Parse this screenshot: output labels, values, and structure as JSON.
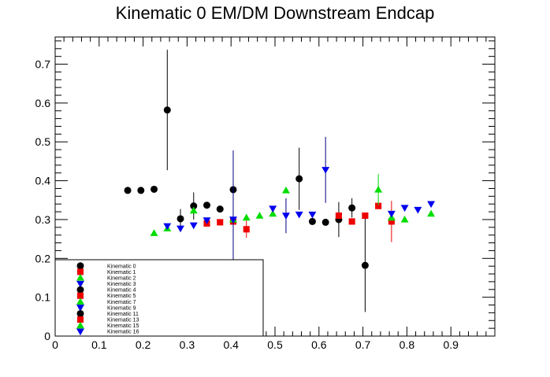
{
  "chart_data": {
    "type": "scatter",
    "title": "Kinematic 0 EM/DM Downstream Endcap",
    "xlabel": "",
    "ylabel": "",
    "xlim": [
      0,
      1.0
    ],
    "ylim": [
      0,
      0.77
    ],
    "x_ticks": [
      0,
      0.1,
      0.2,
      0.3,
      0.4,
      0.5,
      0.6,
      0.7,
      0.8,
      0.9
    ],
    "x_tick_labels": [
      "0",
      "0.1",
      "0.2",
      "0.3",
      "0.4",
      "0.5",
      "0.6",
      "0.7",
      "0.8",
      "0.9"
    ],
    "y_ticks": [
      0,
      0.1,
      0.2,
      0.3,
      0.4,
      0.5,
      0.6,
      0.7
    ],
    "y_tick_labels": [
      "0",
      "0.1",
      "0.2",
      "0.3",
      "0.4",
      "0.5",
      "0.6",
      "0.7"
    ],
    "grid": false,
    "legend_placement": "bottom-left",
    "series": [
      {
        "name": "Kinematic 0",
        "marker": "circle",
        "color": "#000000",
        "points": [
          {
            "x": 0.165,
            "y": 0.375,
            "err": 0.0
          },
          {
            "x": 0.195,
            "y": 0.375,
            "err": 0.0
          },
          {
            "x": 0.225,
            "y": 0.378,
            "err": 0.0
          },
          {
            "x": 0.255,
            "y": 0.582,
            "err": 0.155
          },
          {
            "x": 0.285,
            "y": 0.302,
            "err": 0.025
          },
          {
            "x": 0.315,
            "y": 0.335,
            "err": 0.035
          },
          {
            "x": 0.345,
            "y": 0.337,
            "err": 0.0
          },
          {
            "x": 0.375,
            "y": 0.327,
            "err": 0.0
          },
          {
            "x": 0.405,
            "y": 0.377,
            "err": 0.0
          },
          {
            "x": 0.555,
            "y": 0.405,
            "err": 0.08
          },
          {
            "x": 0.585,
            "y": 0.295,
            "err": 0.0
          },
          {
            "x": 0.615,
            "y": 0.293,
            "err": 0.0
          },
          {
            "x": 0.645,
            "y": 0.3,
            "err": 0.045
          },
          {
            "x": 0.675,
            "y": 0.33,
            "err": 0.025
          },
          {
            "x": 0.705,
            "y": 0.182,
            "err": 0.12
          }
        ]
      },
      {
        "name": "Kinematic 1",
        "marker": "square",
        "color": "#ee0000",
        "points": [
          {
            "x": 0.345,
            "y": 0.29,
            "err": 0.0
          },
          {
            "x": 0.375,
            "y": 0.293,
            "err": 0.0
          },
          {
            "x": 0.405,
            "y": 0.295,
            "err": 0.0
          },
          {
            "x": 0.435,
            "y": 0.275,
            "err": 0.022
          },
          {
            "x": 0.645,
            "y": 0.31,
            "err": 0.0
          },
          {
            "x": 0.675,
            "y": 0.295,
            "err": 0.0
          },
          {
            "x": 0.705,
            "y": 0.31,
            "err": 0.0
          },
          {
            "x": 0.735,
            "y": 0.335,
            "err": 0.0
          },
          {
            "x": 0.765,
            "y": 0.295,
            "err": 0.053
          }
        ]
      },
      {
        "name": "Kinematic 2",
        "marker": "triangle-up",
        "color": "#00dd00",
        "points": [
          {
            "x": 0.225,
            "y": 0.265,
            "err": 0.0
          },
          {
            "x": 0.255,
            "y": 0.277,
            "err": 0.0
          },
          {
            "x": 0.315,
            "y": 0.323,
            "err": 0.0
          },
          {
            "x": 0.405,
            "y": 0.3,
            "err": 0.0
          },
          {
            "x": 0.435,
            "y": 0.305,
            "err": 0.0
          },
          {
            "x": 0.465,
            "y": 0.31,
            "err": 0.0
          },
          {
            "x": 0.495,
            "y": 0.315,
            "err": 0.0
          },
          {
            "x": 0.525,
            "y": 0.375,
            "err": 0.0
          },
          {
            "x": 0.735,
            "y": 0.377,
            "err": 0.04
          },
          {
            "x": 0.765,
            "y": 0.305,
            "err": 0.0
          },
          {
            "x": 0.795,
            "y": 0.3,
            "err": 0.0
          },
          {
            "x": 0.855,
            "y": 0.315,
            "err": 0.0
          }
        ]
      },
      {
        "name": "Kinematic 3",
        "marker": "triangle-down",
        "color": "#0000ee",
        "points": [
          {
            "x": 0.255,
            "y": 0.283,
            "err": 0.0
          },
          {
            "x": 0.285,
            "y": 0.277,
            "err": 0.0
          },
          {
            "x": 0.315,
            "y": 0.285,
            "err": 0.0
          },
          {
            "x": 0.345,
            "y": 0.298,
            "err": 0.0
          },
          {
            "x": 0.405,
            "y": 0.3,
            "err": 0.178
          },
          {
            "x": 0.495,
            "y": 0.328,
            "err": 0.0
          },
          {
            "x": 0.525,
            "y": 0.31,
            "err": 0.045
          },
          {
            "x": 0.555,
            "y": 0.313,
            "err": 0.0
          },
          {
            "x": 0.585,
            "y": 0.313,
            "err": 0.0
          },
          {
            "x": 0.615,
            "y": 0.428,
            "err": 0.085
          },
          {
            "x": 0.765,
            "y": 0.315,
            "err": 0.0
          },
          {
            "x": 0.795,
            "y": 0.33,
            "err": 0.0
          },
          {
            "x": 0.825,
            "y": 0.325,
            "err": 0.0
          },
          {
            "x": 0.855,
            "y": 0.34,
            "err": 0.0
          }
        ]
      }
    ],
    "legend_entries": [
      {
        "label": "Kinematic 0",
        "marker": "circle",
        "color": "#000000"
      },
      {
        "label": "Kinematic 1",
        "marker": "square",
        "color": "#ee0000"
      },
      {
        "label": "Kinematic 2",
        "marker": "triangle-up",
        "color": "#00dd00"
      },
      {
        "label": "Kinematic 3",
        "marker": "triangle-down",
        "color": "#0000ee"
      },
      {
        "label": "Kinematic 4",
        "marker": "circle",
        "color": "#000000"
      },
      {
        "label": "Kinematic 5",
        "marker": "square",
        "color": "#ee0000"
      },
      {
        "label": "Kinematic 7",
        "marker": "triangle-up",
        "color": "#00dd00"
      },
      {
        "label": "Kinematic 9",
        "marker": "triangle-down",
        "color": "#0000ee"
      },
      {
        "label": "Kinematic 11",
        "marker": "circle",
        "color": "#000000"
      },
      {
        "label": "Kinematic 13",
        "marker": "square",
        "color": "#ee0000"
      },
      {
        "label": "Kinematic 15",
        "marker": "triangle-up",
        "color": "#00dd00"
      },
      {
        "label": "Kinematic 16",
        "marker": "triangle-down",
        "color": "#0000ee"
      }
    ]
  }
}
